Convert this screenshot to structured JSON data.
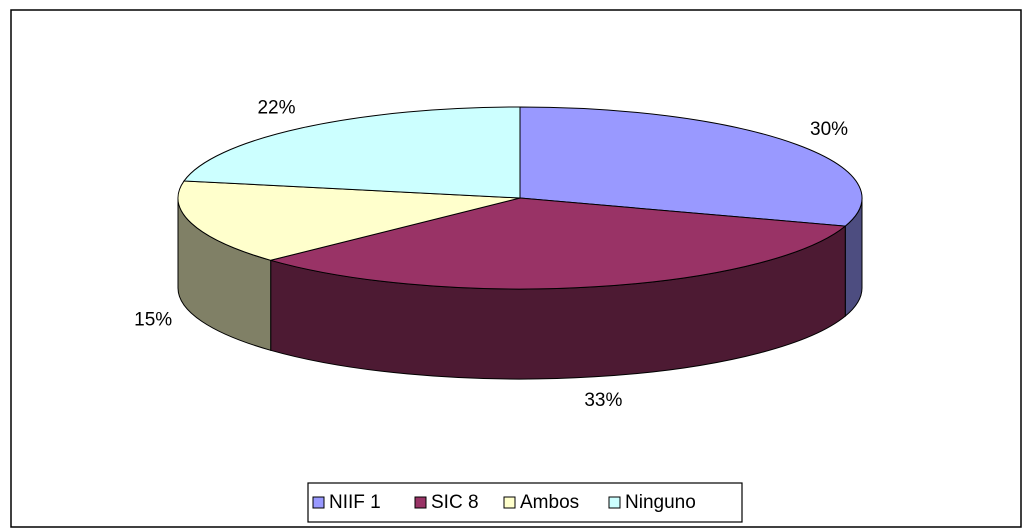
{
  "chart_data": {
    "type": "pie",
    "categories": [
      "NIIF 1",
      "SIC 8",
      "Ambos",
      "Ninguno"
    ],
    "values": [
      30,
      33,
      15,
      22
    ],
    "value_labels": [
      "30%",
      "33%",
      "15%",
      "22%"
    ],
    "colors": [
      "#9999ff",
      "#993366",
      "#ffffcc",
      "#ccffff"
    ],
    "legend": "bottom"
  }
}
